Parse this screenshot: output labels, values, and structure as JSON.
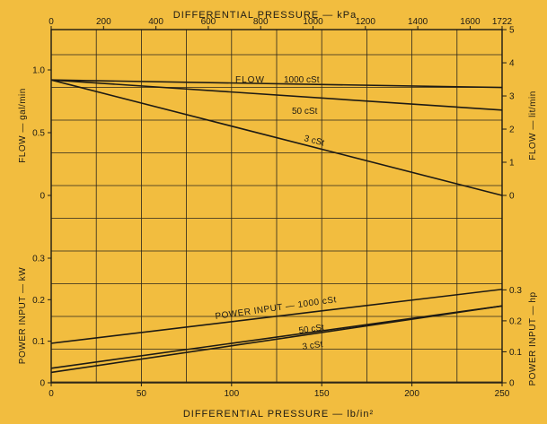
{
  "colors": {
    "background": "#f2bd3f",
    "line": "#1d1a14",
    "grid": "#2a261c"
  },
  "chart_data": [
    {
      "name": "flow-chart",
      "type": "line",
      "top_axis": {
        "title": "DIFFERENTIAL PRESSURE — kPa",
        "range": [
          0,
          1722
        ],
        "ticks": [
          "0",
          "200",
          "400",
          "600",
          "800",
          "1000",
          "1200",
          "1400",
          "1600",
          "1722"
        ],
        "tick_values": [
          0,
          200,
          400,
          600,
          800,
          1000,
          1200,
          1400,
          1600,
          1722
        ]
      },
      "x_range": [
        0,
        250
      ],
      "left_axis": {
        "title": "FLOW — gal/min",
        "range": [
          -0.15,
          1.2
        ],
        "ticks": [
          "0",
          "0.5",
          "1.0"
        ],
        "tick_values": [
          0,
          0.5,
          1.0
        ]
      },
      "right_axis": {
        "title": "FLOW — lit/min",
        "ticks": [
          "0",
          "1",
          "2",
          "3",
          "4",
          "5"
        ],
        "tick_values": [
          0,
          1,
          2,
          3,
          4,
          5
        ]
      },
      "series": [
        {
          "name": "FLOW",
          "label": "1000 cSt",
          "x": [
            0,
            250
          ],
          "y": [
            0.92,
            0.86
          ]
        },
        {
          "name": "50 cSt",
          "x": [
            0,
            250
          ],
          "y": [
            0.92,
            0.68
          ]
        },
        {
          "name": "3 cSt",
          "x": [
            0,
            250
          ],
          "y": [
            0.92,
            0.0
          ]
        }
      ]
    },
    {
      "name": "power-chart",
      "type": "line",
      "x_range": [
        0,
        250
      ],
      "bottom_axis": {
        "title": "DIFFERENTIAL PRESSURE — lb/in²",
        "ticks": [
          "0",
          "50",
          "100",
          "150",
          "200",
          "250"
        ],
        "tick_values": [
          0,
          50,
          100,
          150,
          200,
          250
        ]
      },
      "left_axis": {
        "title": "POWER INPUT — kW",
        "range": [
          0,
          0.3
        ],
        "ticks": [
          "0",
          "0.1",
          "0.2",
          "0.3"
        ],
        "tick_values": [
          0,
          0.1,
          0.2,
          0.3
        ]
      },
      "right_axis": {
        "title": "POWER INPUT — hp",
        "ticks": [
          "0",
          "0.1",
          "0.2",
          "0.3"
        ],
        "tick_values": [
          0,
          0.1,
          0.2,
          0.3
        ]
      },
      "series": [
        {
          "name": "POWER INPUT — 1000 cSt",
          "x": [
            0,
            250
          ],
          "y": [
            0.095,
            0.225
          ]
        },
        {
          "name": "50 cSt",
          "x": [
            0,
            250
          ],
          "y": [
            0.035,
            0.185
          ]
        },
        {
          "name": "3 cSt",
          "x": [
            0,
            250
          ],
          "y": [
            0.025,
            0.185
          ]
        }
      ]
    }
  ]
}
